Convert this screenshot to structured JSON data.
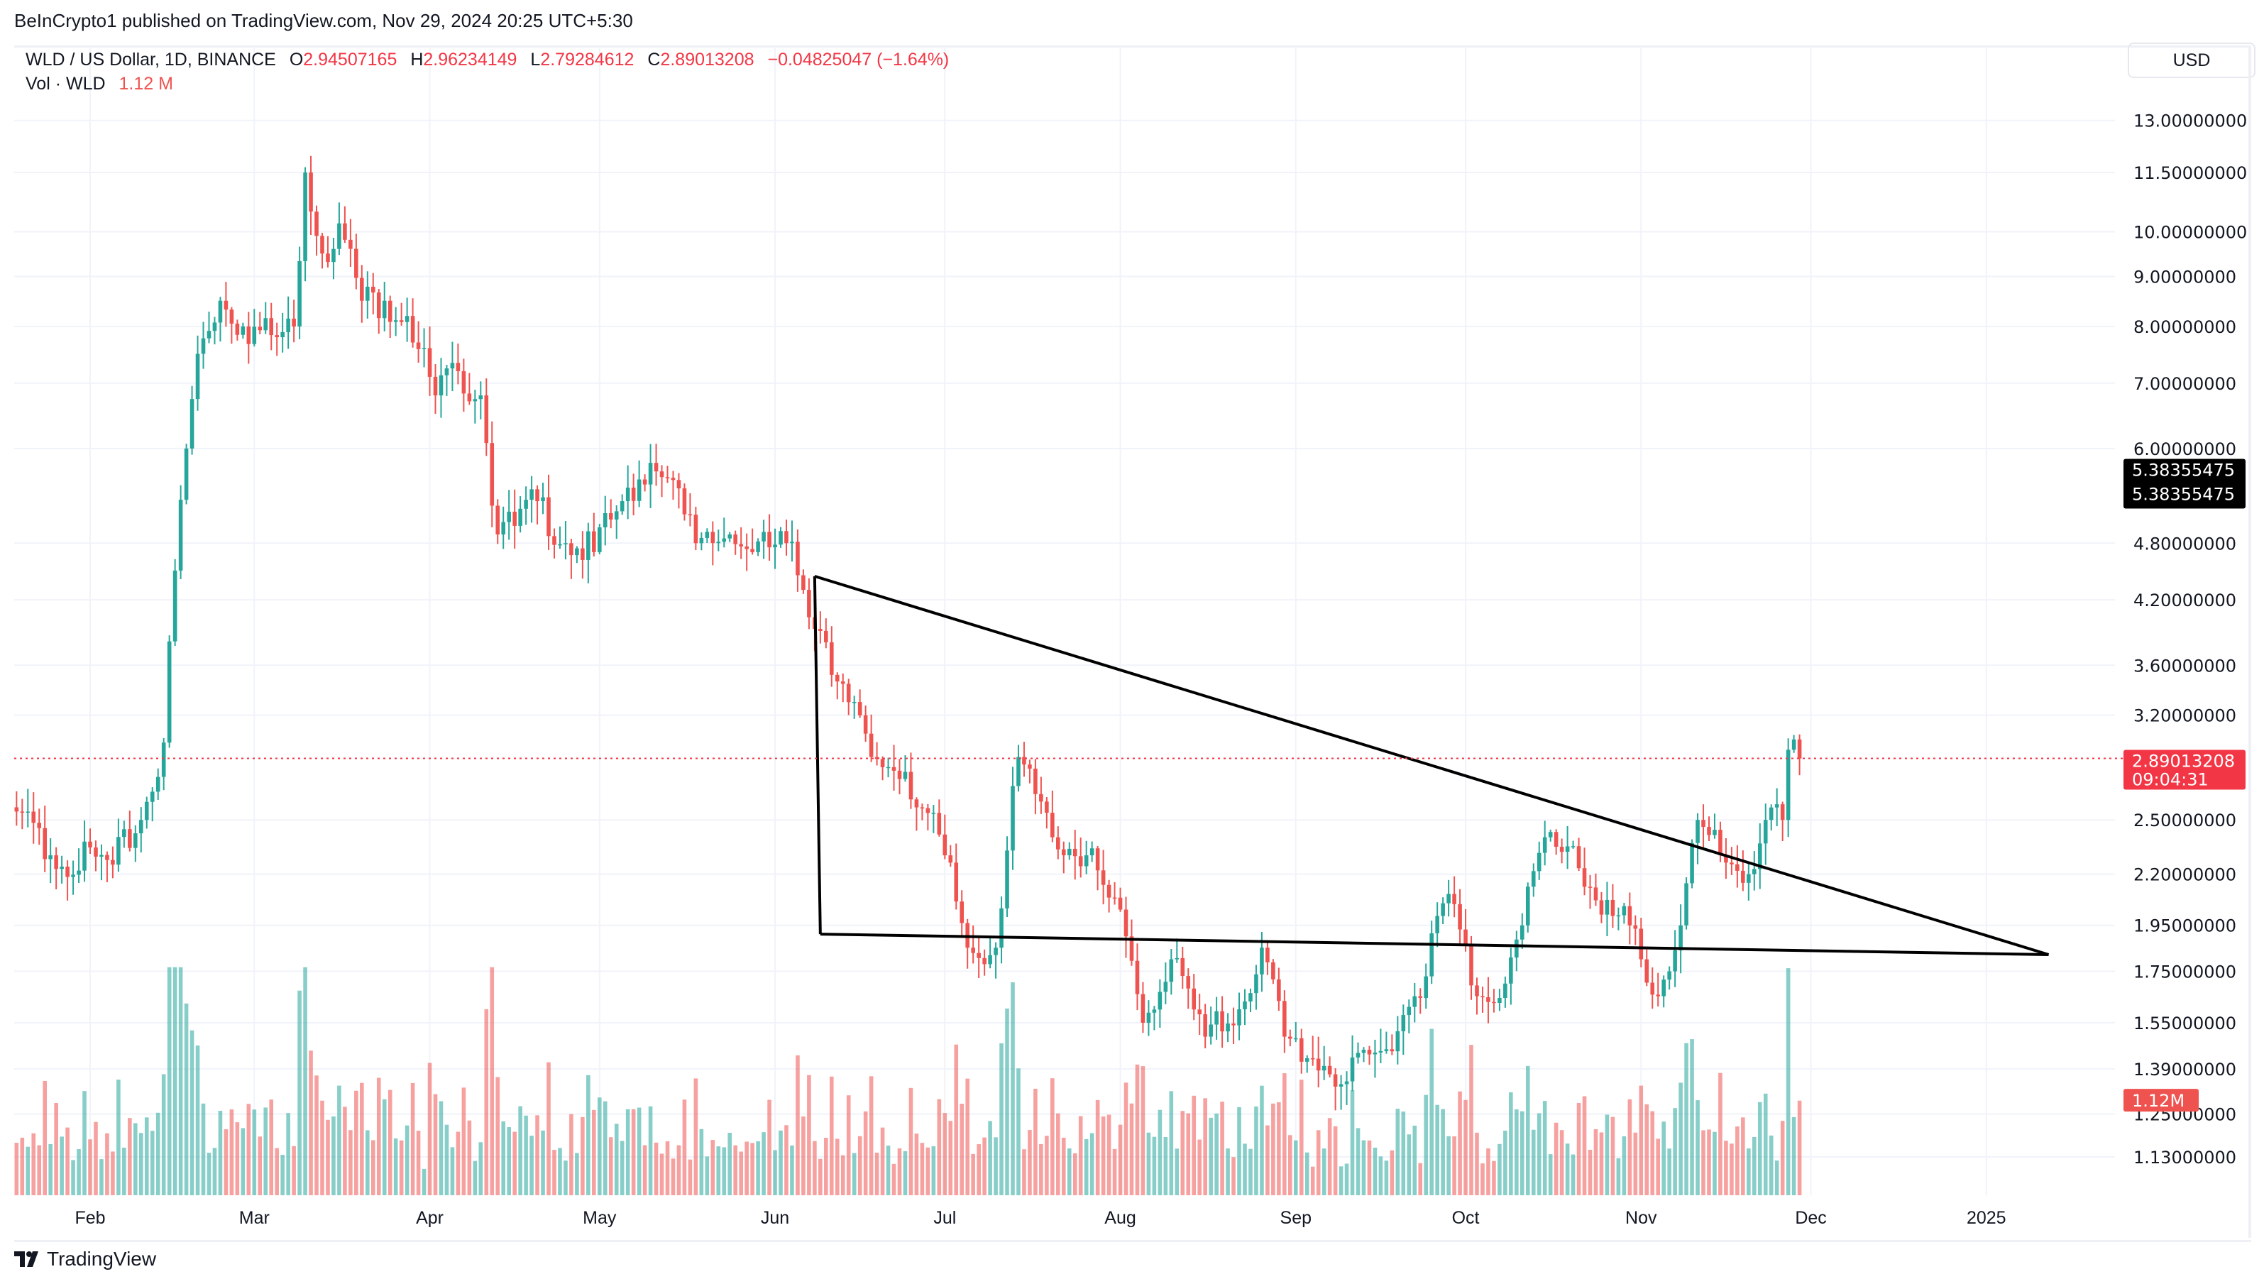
{
  "header": {
    "published": "BeInCrypto1 published on TradingView.com, Nov 29, 2024 20:25 UTC+5:30"
  },
  "legend": {
    "symbol": "WLD / US Dollar, 1D, BINANCE",
    "o_label": "O",
    "o": "2.94507165",
    "h_label": "H",
    "h": "2.96234149",
    "l_label": "L",
    "l": "2.79284612",
    "c_label": "C",
    "c": "2.89013208",
    "change": "−0.04825047 (−1.64%)",
    "vol_label": "Vol · WLD",
    "vol": "1.12 M"
  },
  "currency_button": "USD",
  "footer": {
    "logo_text": "TradingView"
  },
  "colors": {
    "up": "#26a69a",
    "down": "#ef5350",
    "price_tag": "#f23645",
    "grid": "#f0f3fa",
    "trendline": "#000000"
  },
  "chart_data": {
    "type": "candlestick",
    "title": "WLD / US Dollar, 1D, BINANCE",
    "scale": "log",
    "ylim": [
      1.05,
      13.6
    ],
    "grid": true,
    "price_ticks": [
      "13.00000000",
      "11.50000000",
      "10.00000000",
      "9.00000000",
      "8.00000000",
      "7.00000000",
      "6.00000000",
      "4.80000000",
      "4.20000000",
      "3.60000000",
      "3.20000000",
      "2.50000000",
      "2.20000000",
      "1.95000000",
      "1.75000000",
      "1.55000000",
      "1.39000000",
      "1.25000000",
      "1.13000000"
    ],
    "x_ticks": [
      {
        "label": "Feb",
        "date": "2024-02-01"
      },
      {
        "label": "Mar",
        "date": "2024-03-01"
      },
      {
        "label": "Apr",
        "date": "2024-04-01"
      },
      {
        "label": "May",
        "date": "2024-05-01"
      },
      {
        "label": "Jun",
        "date": "2024-06-01"
      },
      {
        "label": "Jul",
        "date": "2024-07-01"
      },
      {
        "label": "Aug",
        "date": "2024-08-01"
      },
      {
        "label": "Sep",
        "date": "2024-09-01"
      },
      {
        "label": "Oct",
        "date": "2024-10-01"
      },
      {
        "label": "Nov",
        "date": "2024-11-01"
      },
      {
        "label": "Dec",
        "date": "2024-12-01"
      },
      {
        "label": "2025",
        "date": "2025-01-01"
      }
    ],
    "close_anchors": [
      [
        "2024-01-19",
        2.55
      ],
      [
        "2024-01-25",
        2.3
      ],
      [
        "2024-02-05",
        2.25
      ],
      [
        "2024-02-10",
        2.5
      ],
      [
        "2024-02-14",
        3.0
      ],
      [
        "2024-02-16",
        4.5
      ],
      [
        "2024-02-18",
        6.0
      ],
      [
        "2024-02-20",
        7.5
      ],
      [
        "2024-02-24",
        8.5
      ],
      [
        "2024-02-28",
        8.0
      ],
      [
        "2024-03-05",
        7.8
      ],
      [
        "2024-03-08",
        8.0
      ],
      [
        "2024-03-10",
        11.5
      ],
      [
        "2024-03-13",
        9.5
      ],
      [
        "2024-03-16",
        10.2
      ],
      [
        "2024-03-20",
        8.5
      ],
      [
        "2024-03-24",
        8.5
      ],
      [
        "2024-03-28",
        8.2
      ],
      [
        "2024-04-02",
        6.8
      ],
      [
        "2024-04-06",
        7.2
      ],
      [
        "2024-04-10",
        6.8
      ],
      [
        "2024-04-13",
        4.9
      ],
      [
        "2024-04-16",
        5.0
      ],
      [
        "2024-04-20",
        5.3
      ],
      [
        "2024-04-25",
        4.8
      ],
      [
        "2024-04-30",
        4.7
      ],
      [
        "2024-05-05",
        5.3
      ],
      [
        "2024-05-10",
        5.8
      ],
      [
        "2024-05-13",
        5.6
      ],
      [
        "2024-05-18",
        4.8
      ],
      [
        "2024-05-24",
        4.9
      ],
      [
        "2024-05-28",
        4.7
      ],
      [
        "2024-06-03",
        4.8
      ],
      [
        "2024-06-06",
        4.3
      ],
      [
        "2024-06-10",
        3.8
      ],
      [
        "2024-06-14",
        3.3
      ],
      [
        "2024-06-18",
        2.9
      ],
      [
        "2024-06-24",
        2.8
      ],
      [
        "2024-07-01",
        2.3
      ],
      [
        "2024-07-05",
        1.85
      ],
      [
        "2024-07-10",
        1.85
      ],
      [
        "2024-07-14",
        2.9
      ],
      [
        "2024-07-20",
        2.4
      ],
      [
        "2024-07-26",
        2.3
      ],
      [
        "2024-08-02",
        1.9
      ],
      [
        "2024-08-05",
        1.55
      ],
      [
        "2024-08-10",
        1.8
      ],
      [
        "2024-08-16",
        1.5
      ],
      [
        "2024-08-22",
        1.6
      ],
      [
        "2024-08-26",
        1.85
      ],
      [
        "2024-08-30",
        1.5
      ],
      [
        "2024-09-06",
        1.4
      ],
      [
        "2024-09-10",
        1.35
      ],
      [
        "2024-09-16",
        1.45
      ],
      [
        "2024-09-22",
        1.65
      ],
      [
        "2024-09-28",
        2.1
      ],
      [
        "2024-10-03",
        1.65
      ],
      [
        "2024-10-08",
        1.7
      ],
      [
        "2024-10-11",
        1.95
      ],
      [
        "2024-10-15",
        2.4
      ],
      [
        "2024-10-20",
        2.35
      ],
      [
        "2024-10-25",
        2.0
      ],
      [
        "2024-10-30",
        1.95
      ],
      [
        "2024-11-04",
        1.65
      ],
      [
        "2024-11-08",
        1.95
      ],
      [
        "2024-11-11",
        2.5
      ],
      [
        "2024-11-15",
        2.3
      ],
      [
        "2024-11-20",
        2.2
      ],
      [
        "2024-11-23",
        2.5
      ],
      [
        "2024-11-26",
        2.5
      ],
      [
        "2024-11-27",
        2.95
      ],
      [
        "2024-11-29",
        2.89
      ]
    ],
    "last_price": {
      "value": 2.89013208,
      "label": "2.89013208",
      "countdown": "09:04:31"
    },
    "marker_price": {
      "value": 5.38355475,
      "label1": "5.38355475",
      "label2": "5.38355475"
    },
    "last_volume": {
      "value_m": 1.12,
      "label": "1.12M"
    },
    "trendlines": [
      {
        "name": "descending-resistance",
        "from": [
          "2024-06-08",
          4.44
        ],
        "to": [
          "2025-01-12",
          1.82
        ]
      },
      {
        "name": "vertical-drop",
        "from": [
          "2024-06-08",
          4.44
        ],
        "to": [
          "2024-06-09",
          1.91
        ]
      },
      {
        "name": "horizontal-support",
        "from": [
          "2024-06-09",
          1.91
        ],
        "to": [
          "2025-01-12",
          1.82
        ]
      }
    ]
  }
}
